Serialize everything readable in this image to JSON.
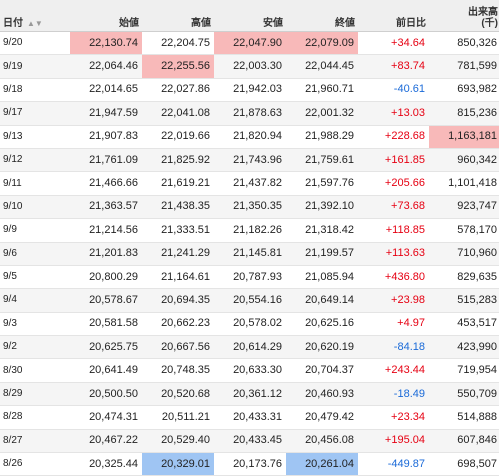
{
  "table": {
    "headers": {
      "date": "日付",
      "open": "始値",
      "high": "高値",
      "low": "安値",
      "close": "終値",
      "change": "前日比",
      "volume": "出来高",
      "volume_unit": "(千)"
    },
    "sort_icon": "▲▼",
    "colors": {
      "up": "#e60012",
      "down": "#1a6ad8",
      "highlight_high": "#f8b9b9",
      "highlight_low": "#9fc5f3"
    },
    "rows": [
      {
        "date": "9/20",
        "open": "22,130.74",
        "high": "22,204.75",
        "low": "22,047.90",
        "close": "22,079.09",
        "change": "+34.64",
        "volume": "850,326",
        "dir": "up",
        "hl": [
          "open",
          "low",
          "close"
        ]
      },
      {
        "date": "9/19",
        "open": "22,064.46",
        "high": "22,255.56",
        "low": "22,003.30",
        "close": "22,044.45",
        "change": "+83.74",
        "volume": "781,599",
        "dir": "up",
        "hl": [
          "high"
        ]
      },
      {
        "date": "9/18",
        "open": "22,014.65",
        "high": "22,027.86",
        "low": "21,942.03",
        "close": "21,960.71",
        "change": "-40.61",
        "volume": "693,982",
        "dir": "down",
        "hl": []
      },
      {
        "date": "9/17",
        "open": "21,947.59",
        "high": "22,041.08",
        "low": "21,878.63",
        "close": "22,001.32",
        "change": "+13.03",
        "volume": "815,236",
        "dir": "up",
        "hl": []
      },
      {
        "date": "9/13",
        "open": "21,907.83",
        "high": "22,019.66",
        "low": "21,820.94",
        "close": "21,988.29",
        "change": "+228.68",
        "volume": "1,163,181",
        "dir": "up",
        "hl": [
          "volume"
        ]
      },
      {
        "date": "9/12",
        "open": "21,761.09",
        "high": "21,825.92",
        "low": "21,743.96",
        "close": "21,759.61",
        "change": "+161.85",
        "volume": "960,342",
        "dir": "up",
        "hl": []
      },
      {
        "date": "9/11",
        "open": "21,466.66",
        "high": "21,619.21",
        "low": "21,437.82",
        "close": "21,597.76",
        "change": "+205.66",
        "volume": "1,101,418",
        "dir": "up",
        "hl": []
      },
      {
        "date": "9/10",
        "open": "21,363.57",
        "high": "21,438.35",
        "low": "21,350.35",
        "close": "21,392.10",
        "change": "+73.68",
        "volume": "923,747",
        "dir": "up",
        "hl": []
      },
      {
        "date": "9/9",
        "open": "21,214.56",
        "high": "21,333.51",
        "low": "21,182.26",
        "close": "21,318.42",
        "change": "+118.85",
        "volume": "578,170",
        "dir": "up",
        "hl": []
      },
      {
        "date": "9/6",
        "open": "21,201.83",
        "high": "21,241.29",
        "low": "21,145.81",
        "close": "21,199.57",
        "change": "+113.63",
        "volume": "710,960",
        "dir": "up",
        "hl": []
      },
      {
        "date": "9/5",
        "open": "20,800.29",
        "high": "21,164.61",
        "low": "20,787.93",
        "close": "21,085.94",
        "change": "+436.80",
        "volume": "829,635",
        "dir": "up",
        "hl": []
      },
      {
        "date": "9/4",
        "open": "20,578.67",
        "high": "20,694.35",
        "low": "20,554.16",
        "close": "20,649.14",
        "change": "+23.98",
        "volume": "515,283",
        "dir": "up",
        "hl": []
      },
      {
        "date": "9/3",
        "open": "20,581.58",
        "high": "20,662.23",
        "low": "20,578.02",
        "close": "20,625.16",
        "change": "+4.97",
        "volume": "453,517",
        "dir": "up",
        "hl": []
      },
      {
        "date": "9/2",
        "open": "20,625.75",
        "high": "20,667.56",
        "low": "20,614.29",
        "close": "20,620.19",
        "change": "-84.18",
        "volume": "423,990",
        "dir": "down",
        "hl": []
      },
      {
        "date": "8/30",
        "open": "20,641.49",
        "high": "20,748.35",
        "low": "20,633.30",
        "close": "20,704.37",
        "change": "+243.44",
        "volume": "719,954",
        "dir": "up",
        "hl": []
      },
      {
        "date": "8/29",
        "open": "20,500.50",
        "high": "20,520.68",
        "low": "20,361.12",
        "close": "20,460.93",
        "change": "-18.49",
        "volume": "550,709",
        "dir": "down",
        "hl": []
      },
      {
        "date": "8/28",
        "open": "20,474.31",
        "high": "20,511.21",
        "low": "20,433.31",
        "close": "20,479.42",
        "change": "+23.34",
        "volume": "514,888",
        "dir": "up",
        "hl": []
      },
      {
        "date": "8/27",
        "open": "20,467.22",
        "high": "20,529.40",
        "low": "20,433.45",
        "close": "20,456.08",
        "change": "+195.04",
        "volume": "607,846",
        "dir": "up",
        "hl": []
      },
      {
        "date": "8/26",
        "open": "20,325.44",
        "high": "20,329.01",
        "low": "20,173.76",
        "close": "20,261.04",
        "change": "-449.87",
        "volume": "698,507",
        "dir": "down",
        "hl": [
          "high",
          "close"
        ]
      }
    ]
  }
}
